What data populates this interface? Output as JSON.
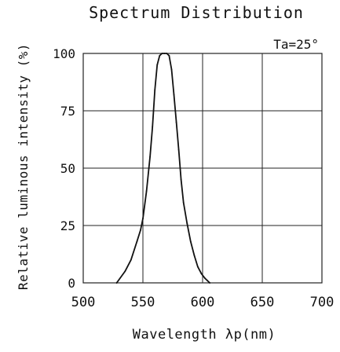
{
  "chart_data": {
    "type": "line",
    "title": "Spectrum Distribution",
    "xlabel": "Wavelength λp(nm)",
    "ylabel": "Relative luminous intensity (%)",
    "annotation": "Ta=25°",
    "xlim": [
      500,
      700
    ],
    "ylim": [
      0,
      100
    ],
    "xticks": [
      "500",
      "550",
      "600",
      "650",
      "700"
    ],
    "yticks": [
      "0",
      "25",
      "50",
      "75",
      "100"
    ],
    "grid": true,
    "colors": {
      "line": "#111111",
      "grid": "#222222",
      "background": "#ffffff"
    },
    "series": [
      {
        "x": [
          528,
          535,
          540,
          545,
          548,
          550,
          553,
          556,
          558,
          560,
          562,
          564,
          566,
          568,
          570,
          572,
          574,
          576,
          578,
          580,
          582,
          584,
          587,
          590,
          593,
          596,
          599,
          602,
          604,
          606
        ],
        "y": [
          0,
          5,
          10,
          18,
          23,
          28,
          40,
          55,
          68,
          84,
          95,
          99,
          100,
          100,
          100,
          99,
          93,
          82,
          70,
          58,
          45,
          35,
          26,
          18,
          12,
          7,
          4,
          2,
          1,
          0
        ]
      }
    ]
  }
}
